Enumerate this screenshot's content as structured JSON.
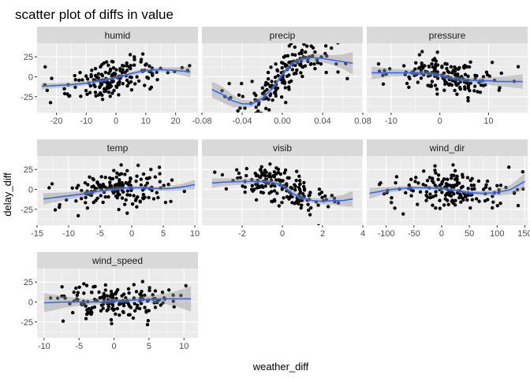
{
  "chart_data": {
    "type": "scatter",
    "title": "scatter plot of diffs in value",
    "xlabel": "weather_diff",
    "ylabel": "delay_diff",
    "grid": true,
    "smooth": "loess with confidence band",
    "ylim": [
      -45,
      42
    ],
    "y_ticks": [
      -25,
      0,
      25
    ],
    "colors": {
      "panel": "#EBEBEB",
      "strip": "#D9D9D9",
      "point": "#000000",
      "smooth": "#3366FF",
      "band": "#999999"
    },
    "facets": [
      {
        "name": "humid",
        "xlim": [
          -26.5,
          27.5
        ],
        "x_ticks": [
          -20,
          -10,
          0,
          10,
          20
        ],
        "x_tick_labels": [
          "-20",
          "-10",
          "0",
          "10",
          "20"
        ],
        "seed": 11,
        "smooth": [
          [
            -25,
            -12
          ],
          [
            -20,
            -11
          ],
          [
            -15,
            -10
          ],
          [
            -10,
            -8
          ],
          [
            -5,
            -5
          ],
          [
            0,
            -1
          ],
          [
            5,
            4
          ],
          [
            10,
            8
          ],
          [
            15,
            9
          ],
          [
            20,
            8
          ],
          [
            25,
            6
          ]
        ],
        "band": [
          4,
          3,
          3,
          2.5,
          2.5,
          2.5,
          2.5,
          2.5,
          3,
          4,
          7
        ]
      },
      {
        "name": "precip",
        "xlim": [
          -0.08,
          0.08
        ],
        "x_ticks": [
          -0.08,
          -0.04,
          0,
          0.04,
          0.08
        ],
        "x_tick_labels": [
          "-0.08",
          "-0.04",
          "0.00",
          "0.04",
          "0.08"
        ],
        "seed": 23,
        "smooth": [
          [
            -0.07,
            -16
          ],
          [
            -0.06,
            -22
          ],
          [
            -0.05,
            -30
          ],
          [
            -0.04,
            -34
          ],
          [
            -0.03,
            -34
          ],
          [
            -0.02,
            -27
          ],
          [
            -0.01,
            -15
          ],
          [
            0,
            3
          ],
          [
            0.01,
            17
          ],
          [
            0.02,
            22
          ],
          [
            0.03,
            24
          ],
          [
            0.04,
            23
          ],
          [
            0.05,
            21
          ],
          [
            0.06,
            19
          ],
          [
            0.07,
            17
          ]
        ],
        "band": [
          10,
          10,
          8,
          5,
          4,
          4,
          3,
          3,
          3,
          4,
          5,
          5,
          6,
          9,
          14
        ]
      },
      {
        "name": "pressure",
        "xlim": [
          -15,
          18
        ],
        "x_ticks": [
          -10,
          0,
          10
        ],
        "x_tick_labels": [
          "-10",
          "0",
          "10"
        ],
        "seed": 37,
        "smooth": [
          [
            -14,
            5
          ],
          [
            -10,
            5
          ],
          [
            -6,
            5
          ],
          [
            -2,
            4
          ],
          [
            0,
            2
          ],
          [
            2,
            -1
          ],
          [
            4,
            -3
          ],
          [
            6,
            -4
          ],
          [
            8,
            -5
          ],
          [
            10,
            -5
          ],
          [
            12,
            -6
          ],
          [
            14,
            -6
          ],
          [
            17,
            -6
          ]
        ],
        "band": [
          8,
          5,
          4,
          3,
          3,
          3,
          3,
          3,
          4,
          5,
          6,
          7,
          9
        ]
      },
      {
        "name": "temp",
        "xlim": [
          -15,
          10.5
        ],
        "x_ticks": [
          -15,
          -10,
          -5,
          0,
          5,
          10
        ],
        "x_tick_labels": [
          "-15",
          "-10",
          "-5",
          "0",
          "5",
          "10"
        ],
        "seed": 41,
        "smooth": [
          [
            -14,
            -12
          ],
          [
            -11,
            -9
          ],
          [
            -8,
            -6
          ],
          [
            -5,
            -2
          ],
          [
            -2,
            1
          ],
          [
            0,
            2
          ],
          [
            2,
            2
          ],
          [
            4,
            1
          ],
          [
            6,
            1
          ],
          [
            8,
            3
          ],
          [
            10,
            6
          ]
        ],
        "band": [
          7,
          5,
          4,
          3,
          2.5,
          2.5,
          2.5,
          2.5,
          3,
          4,
          6
        ]
      },
      {
        "name": "visib",
        "xlim": [
          -4,
          4
        ],
        "x_ticks": [
          -2,
          0,
          2,
          4
        ],
        "x_tick_labels": [
          "-2",
          "0",
          "2",
          "4"
        ],
        "seed": 53,
        "smooth": [
          [
            -3.5,
            8
          ],
          [
            -3,
            9
          ],
          [
            -2,
            10
          ],
          [
            -1,
            10
          ],
          [
            -0.5,
            9
          ],
          [
            0,
            5
          ],
          [
            0.5,
            -5
          ],
          [
            1,
            -11
          ],
          [
            1.5,
            -14
          ],
          [
            2,
            -15
          ],
          [
            2.5,
            -14
          ],
          [
            3,
            -14
          ],
          [
            3.5,
            -12
          ]
        ],
        "band": [
          6,
          5,
          4,
          3,
          3,
          3,
          3,
          3,
          3,
          4,
          5,
          7,
          10
        ]
      },
      {
        "name": "wind_dir",
        "xlim": [
          -135,
          155
        ],
        "x_ticks": [
          -100,
          -50,
          0,
          50,
          100,
          150
        ],
        "x_tick_labels": [
          "-100",
          "-50",
          "0",
          "50",
          "100",
          "150"
        ],
        "seed": 67,
        "smooth": [
          [
            -130,
            -5
          ],
          [
            -100,
            -1
          ],
          [
            -75,
            1
          ],
          [
            -50,
            2
          ],
          [
            -25,
            2
          ],
          [
            0,
            1
          ],
          [
            25,
            -1
          ],
          [
            50,
            -4
          ],
          [
            75,
            -5
          ],
          [
            100,
            -4
          ],
          [
            125,
            0
          ],
          [
            150,
            10
          ]
        ],
        "band": [
          7,
          4,
          3,
          2.5,
          2.5,
          2.5,
          2.5,
          2.5,
          3,
          4,
          6,
          10
        ]
      },
      {
        "name": "wind_speed",
        "xlim": [
          -11,
          12
        ],
        "x_ticks": [
          -10,
          -5,
          0,
          5,
          10
        ],
        "x_tick_labels": [
          "-10",
          "-5",
          "0",
          "5",
          "10"
        ],
        "seed": 79,
        "smooth": [
          [
            -10,
            -1
          ],
          [
            -7,
            0
          ],
          [
            -4,
            0
          ],
          [
            -2,
            0
          ],
          [
            0,
            1
          ],
          [
            2,
            2
          ],
          [
            4,
            3
          ],
          [
            7,
            4
          ],
          [
            9,
            4
          ],
          [
            11,
            4
          ]
        ],
        "band": [
          12,
          7,
          4,
          3,
          3,
          3,
          4,
          6,
          10,
          16
        ]
      }
    ]
  }
}
